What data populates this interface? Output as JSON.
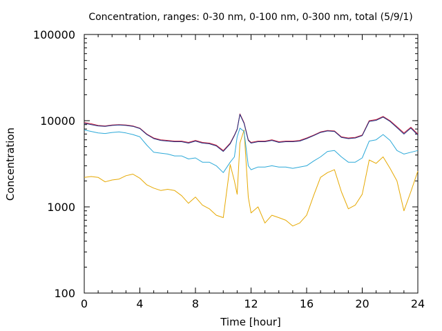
{
  "chart_data": {
    "type": "line",
    "title": "Concentration, ranges: 0-30 nm, 0-100 nm, 0-300 nm, total (5/9/1)",
    "xlabel": "Time [hour]",
    "ylabel": "Concentration",
    "xlim": [
      0,
      24
    ],
    "ylim": [
      100,
      100000
    ],
    "yscale": "log",
    "grid": false,
    "x_ticks": [
      0,
      4,
      8,
      12,
      16,
      20,
      24
    ],
    "x_tick_labels": [
      "0",
      "4",
      "8",
      "12",
      "16",
      "20",
      "24"
    ],
    "y_ticks": [
      100,
      1000,
      10000,
      100000
    ],
    "y_tick_labels": [
      "100",
      "1000",
      "10000",
      "100000"
    ],
    "series": [
      {
        "color": "#e6a800",
        "x": [
          0,
          0.5,
          1,
          1.5,
          2,
          2.5,
          3,
          3.5,
          4,
          4.5,
          5,
          5.5,
          6,
          6.5,
          7,
          7.5,
          8,
          8.5,
          9,
          9.5,
          10,
          10.5,
          10.8,
          11,
          11.2,
          11.5,
          11.8,
          12,
          12.5,
          13,
          13.5,
          14,
          14.5,
          15,
          15.5,
          16,
          16.5,
          17,
          17.5,
          18,
          18.5,
          19,
          19.5,
          20,
          20.5,
          21,
          21.5,
          22,
          22.5,
          23,
          23.5,
          24
        ],
        "y": [
          2200,
          2250,
          2200,
          1950,
          2050,
          2100,
          2300,
          2400,
          2150,
          1800,
          1650,
          1550,
          1600,
          1550,
          1350,
          1100,
          1300,
          1050,
          950,
          800,
          750,
          3100,
          2000,
          1400,
          5500,
          7800,
          1300,
          850,
          1000,
          650,
          800,
          750,
          700,
          600,
          650,
          800,
          1350,
          2200,
          2500,
          2700,
          1500,
          950,
          1050,
          1400,
          3500,
          3200,
          3800,
          2800,
          2000,
          900,
          1500,
          2600
        ]
      },
      {
        "color": "#2aa8d8",
        "x": [
          0,
          0.5,
          1,
          1.5,
          2,
          2.5,
          3,
          3.5,
          4,
          4.5,
          5,
          5.5,
          6,
          6.5,
          7,
          7.5,
          8,
          8.5,
          9,
          9.5,
          10,
          10.5,
          10.8,
          11,
          11.2,
          11.5,
          11.8,
          12,
          12.5,
          13,
          13.5,
          14,
          14.5,
          15,
          15.5,
          16,
          16.5,
          17,
          17.5,
          18,
          18.5,
          19,
          19.5,
          20,
          20.5,
          21,
          21.5,
          22,
          22.5,
          23,
          23.5,
          24
        ],
        "y": [
          7800,
          7500,
          7200,
          7100,
          7300,
          7400,
          7200,
          6900,
          6500,
          5200,
          4300,
          4200,
          4100,
          3900,
          3900,
          3600,
          3700,
          3300,
          3300,
          3000,
          2500,
          3300,
          3800,
          6500,
          8200,
          7500,
          3000,
          2700,
          2900,
          2900,
          3000,
          2900,
          2900,
          2800,
          2900,
          3000,
          3400,
          3800,
          4400,
          4500,
          3800,
          3300,
          3300,
          3700,
          5800,
          6000,
          6900,
          5900,
          4500,
          4100,
          4300,
          4500
        ]
      },
      {
        "color": "#cc1f3c",
        "x": [
          0,
          0.5,
          1,
          1.5,
          2,
          2.5,
          3,
          3.5,
          4,
          4.5,
          5,
          5.5,
          6,
          6.5,
          7,
          7.5,
          8,
          8.5,
          9,
          9.5,
          10,
          10.5,
          10.8,
          11,
          11.2,
          11.5,
          11.8,
          12,
          12.5,
          13,
          13.5,
          14,
          14.5,
          15,
          15.5,
          16,
          16.5,
          17,
          17.5,
          18,
          18.5,
          19,
          19.5,
          20,
          20.5,
          21,
          21.5,
          22,
          22.5,
          23,
          23.5,
          24
        ],
        "y": [
          9500,
          9200,
          8800,
          8700,
          8900,
          9000,
          8900,
          8700,
          8200,
          7000,
          6300,
          6000,
          5900,
          5800,
          5800,
          5600,
          5900,
          5600,
          5500,
          5200,
          4500,
          5500,
          6800,
          8000,
          12000,
          9500,
          6000,
          5600,
          5800,
          5800,
          6000,
          5700,
          5800,
          5800,
          5900,
          6300,
          6800,
          7400,
          7700,
          7600,
          6500,
          6300,
          6400,
          6800,
          10000,
          10300,
          11200,
          10000,
          8500,
          7200,
          8400,
          7000
        ]
      },
      {
        "color": "#1a2f80",
        "x": [
          0,
          0.5,
          1,
          1.5,
          2,
          2.5,
          3,
          3.5,
          4,
          4.5,
          5,
          5.5,
          6,
          6.5,
          7,
          7.5,
          8,
          8.5,
          9,
          9.5,
          10,
          10.5,
          10.8,
          11,
          11.2,
          11.5,
          11.8,
          12,
          12.5,
          13,
          13.5,
          14,
          14.5,
          15,
          15.5,
          16,
          16.5,
          17,
          17.5,
          18,
          18.5,
          19,
          19.5,
          20,
          20.5,
          21,
          21.5,
          22,
          22.5,
          23,
          23.5,
          24
        ],
        "y": [
          9300,
          9000,
          8700,
          8600,
          8800,
          8900,
          8800,
          8600,
          8100,
          6900,
          6200,
          5900,
          5800,
          5700,
          5700,
          5500,
          5800,
          5500,
          5400,
          5100,
          4400,
          5400,
          6700,
          7900,
          11800,
          9300,
          5900,
          5500,
          5700,
          5700,
          5900,
          5600,
          5700,
          5700,
          5800,
          6200,
          6700,
          7300,
          7600,
          7500,
          6400,
          6200,
          6300,
          6700,
          9800,
          10100,
          11000,
          9800,
          8300,
          7000,
          8200,
          6800
        ]
      }
    ]
  }
}
